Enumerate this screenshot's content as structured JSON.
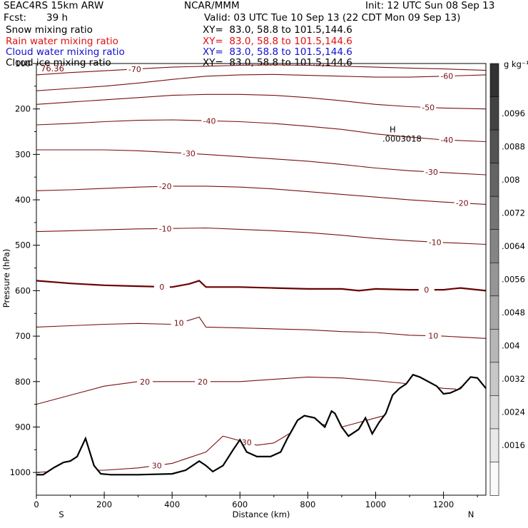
{
  "header": {
    "model": "SEAC4RS 15km ARW",
    "center": "NCAR/MMM",
    "init": "Init: 12 UTC Sun 08 Sep 13",
    "fcst_label": "Fcst:",
    "fcst_value": "39 h",
    "valid": "Valid: 03 UTC Tue 10 Sep 13 (22 CDT Mon 09 Sep 13)"
  },
  "legend": [
    {
      "name": "Snow mixing ratio",
      "xy": "XY=  83.0, 58.8 to 101.5,144.6",
      "color": "#000000"
    },
    {
      "name": "Rain water mixing ratio",
      "xy": "XY=  83.0, 58.8 to 101.5,144.6",
      "color": "#e01010"
    },
    {
      "name": "Cloud water mixing ratio",
      "xy": "XY=  83.0, 58.8 to 101.5,144.6",
      "color": "#1010d0"
    },
    {
      "name": "Cloud ice mixing ratio",
      "xy": "XY=  83.0, 58.8 to 101.5,144.6",
      "color": "#000000"
    }
  ],
  "colors": {
    "contour": "#7a1010",
    "zero_contour": "#6a0000",
    "terrain": "#000000"
  },
  "chart_data": {
    "type": "contour",
    "ylabel": "Pressure (hPa)",
    "xlabel": "Distance (km)",
    "xlim": [
      0,
      1325
    ],
    "ylim": [
      1050,
      100
    ],
    "x_ticks": [
      "0",
      "200",
      "400",
      "600",
      "800",
      "1000",
      "1200"
    ],
    "y_ticks": [
      "100",
      "200",
      "300",
      "400",
      "500",
      "600",
      "700",
      "800",
      "900",
      "1000"
    ],
    "x_end_labels": {
      "left": "S",
      "right": "N"
    },
    "corner_value": "76.36",
    "max_marker": {
      "symbol": "H",
      "value": ".0003018",
      "x": 1020,
      "p": 258
    },
    "colorbar": {
      "unit": "g kg⁻¹",
      "ticks": [
        ".0096",
        ".0088",
        ".008",
        ".0072",
        ".0064",
        ".0056",
        ".0048",
        ".004",
        ".0032",
        ".0024",
        ".0016"
      ]
    },
    "temperature_contours": [
      {
        "value": -70,
        "label": "-70",
        "x": [
          0,
          100,
          200,
          300,
          400,
          500,
          600,
          700,
          800,
          900,
          1000,
          1100,
          1200,
          1325
        ],
        "p": [
          125,
          120,
          116,
          112,
          108,
          106,
          104,
          103,
          104,
          106,
          108,
          110,
          112,
          115
        ],
        "labels": [
          {
            "text": "-70",
            "x": 290
          }
        ]
      },
      {
        "value": -60,
        "label": "-60",
        "x": [
          0,
          100,
          200,
          300,
          400,
          500,
          600,
          700,
          800,
          900,
          1000,
          1100,
          1200,
          1325
        ],
        "p": [
          160,
          155,
          150,
          143,
          135,
          128,
          125,
          124,
          126,
          128,
          130,
          130,
          128,
          125
        ],
        "labels": [
          {
            "text": "-60",
            "x": 1210
          }
        ]
      },
      {
        "value": -50,
        "label": "-50",
        "x": [
          0,
          100,
          200,
          300,
          400,
          500,
          600,
          700,
          800,
          900,
          1000,
          1100,
          1200,
          1325
        ],
        "p": [
          190,
          185,
          180,
          175,
          170,
          168,
          168,
          170,
          175,
          182,
          190,
          195,
          198,
          200
        ],
        "labels": [
          {
            "text": "-50",
            "x": 1155
          }
        ]
      },
      {
        "value": -40,
        "label": "-40",
        "x": [
          0,
          100,
          200,
          300,
          400,
          500,
          600,
          700,
          800,
          900,
          1000,
          1100,
          1200,
          1325
        ],
        "p": [
          235,
          232,
          228,
          225,
          224,
          226,
          228,
          232,
          238,
          245,
          255,
          262,
          268,
          272
        ],
        "labels": [
          {
            "text": "-40",
            "x": 510
          },
          {
            "text": "-40",
            "x": 1210
          }
        ]
      },
      {
        "value": -30,
        "label": "-30",
        "x": [
          0,
          100,
          200,
          300,
          400,
          500,
          600,
          700,
          800,
          900,
          1000,
          1100,
          1200,
          1325
        ],
        "p": [
          290,
          290,
          290,
          292,
          296,
          300,
          305,
          310,
          315,
          322,
          330,
          336,
          340,
          345
        ],
        "labels": [
          {
            "text": "-30",
            "x": 450
          },
          {
            "text": "-30",
            "x": 1165
          }
        ]
      },
      {
        "value": -20,
        "label": "-20",
        "x": [
          0,
          100,
          200,
          300,
          400,
          500,
          600,
          700,
          800,
          900,
          1000,
          1100,
          1200,
          1325
        ],
        "p": [
          380,
          378,
          375,
          372,
          370,
          370,
          372,
          376,
          382,
          388,
          394,
          400,
          405,
          410
        ],
        "labels": [
          {
            "text": "-20",
            "x": 380
          },
          {
            "text": "-20",
            "x": 1255
          }
        ]
      },
      {
        "value": -10,
        "label": "-10",
        "x": [
          0,
          100,
          200,
          300,
          400,
          500,
          600,
          700,
          800,
          900,
          1000,
          1100,
          1200,
          1325
        ],
        "p": [
          470,
          468,
          466,
          464,
          463,
          462,
          465,
          468,
          472,
          478,
          485,
          490,
          494,
          498
        ],
        "labels": [
          {
            "text": "-10",
            "x": 380
          },
          {
            "text": "-10",
            "x": 1175
          }
        ]
      },
      {
        "value": 0,
        "label": "0",
        "x": [
          0,
          100,
          200,
          300,
          400,
          450,
          480,
          500,
          600,
          700,
          800,
          900,
          950,
          1000,
          1100,
          1200,
          1250,
          1325
        ],
        "p": [
          578,
          584,
          588,
          590,
          592,
          585,
          578,
          592,
          592,
          594,
          596,
          596,
          600,
          596,
          598,
          598,
          594,
          600
        ],
        "labels": [
          {
            "text": "0",
            "x": 370
          },
          {
            "text": "0",
            "x": 1150
          }
        ]
      },
      {
        "value": 10,
        "label": "10",
        "x": [
          0,
          100,
          200,
          300,
          400,
          450,
          480,
          500,
          600,
          700,
          800,
          900,
          1000,
          1100,
          1200,
          1325
        ],
        "p": [
          680,
          677,
          674,
          672,
          674,
          665,
          658,
          680,
          682,
          684,
          686,
          690,
          692,
          698,
          700,
          705
        ],
        "labels": [
          {
            "text": "10",
            "x": 420
          },
          {
            "text": "10",
            "x": 1170
          }
        ]
      },
      {
        "value": 20,
        "label": "20",
        "x": [
          0,
          100,
          200,
          300,
          400,
          500,
          600,
          700,
          800,
          900,
          1000,
          1100,
          1200,
          1325
        ],
        "p": [
          850,
          830,
          810,
          800,
          800,
          800,
          800,
          795,
          790,
          792,
          798,
          805,
          815,
          820
        ],
        "labels": [
          {
            "text": "20",
            "x": 320
          },
          {
            "text": "20",
            "x": 490
          },
          {
            "text": "20",
            "x": 1260
          }
        ]
      },
      {
        "value": 30,
        "label": "30",
        "x": [
          0,
          100,
          200,
          300,
          400,
          500,
          550,
          600,
          650,
          700,
          800,
          900,
          1000,
          1100,
          1200,
          1325
        ],
        "p": [
          1000,
          995,
          995,
          990,
          980,
          955,
          920,
          930,
          940,
          935,
          890,
          900,
          880,
          860,
          850,
          840
        ],
        "labels": [
          {
            "text": "30",
            "x": 355
          },
          {
            "text": "30",
            "x": 620
          }
        ]
      }
    ],
    "terrain_profile": {
      "x": [
        0,
        20,
        50,
        80,
        100,
        120,
        145,
        170,
        190,
        220,
        260,
        300,
        350,
        400,
        440,
        480,
        500,
        520,
        550,
        580,
        600,
        620,
        650,
        690,
        720,
        740,
        770,
        790,
        820,
        850,
        870,
        880,
        900,
        920,
        950,
        970,
        990,
        1010,
        1030,
        1050,
        1070,
        1090,
        1110,
        1130,
        1150,
        1180,
        1200,
        1220,
        1250,
        1280,
        1300,
        1325
      ],
      "p": [
        1005,
        1005,
        990,
        978,
        975,
        965,
        925,
        985,
        1003,
        1005,
        1005,
        1005,
        1004,
        1003,
        995,
        975,
        985,
        998,
        985,
        950,
        928,
        955,
        965,
        965,
        955,
        925,
        885,
        875,
        880,
        900,
        865,
        870,
        900,
        920,
        905,
        880,
        915,
        890,
        870,
        830,
        815,
        805,
        785,
        790,
        798,
        810,
        827,
        825,
        815,
        790,
        792,
        815
      ]
    }
  }
}
